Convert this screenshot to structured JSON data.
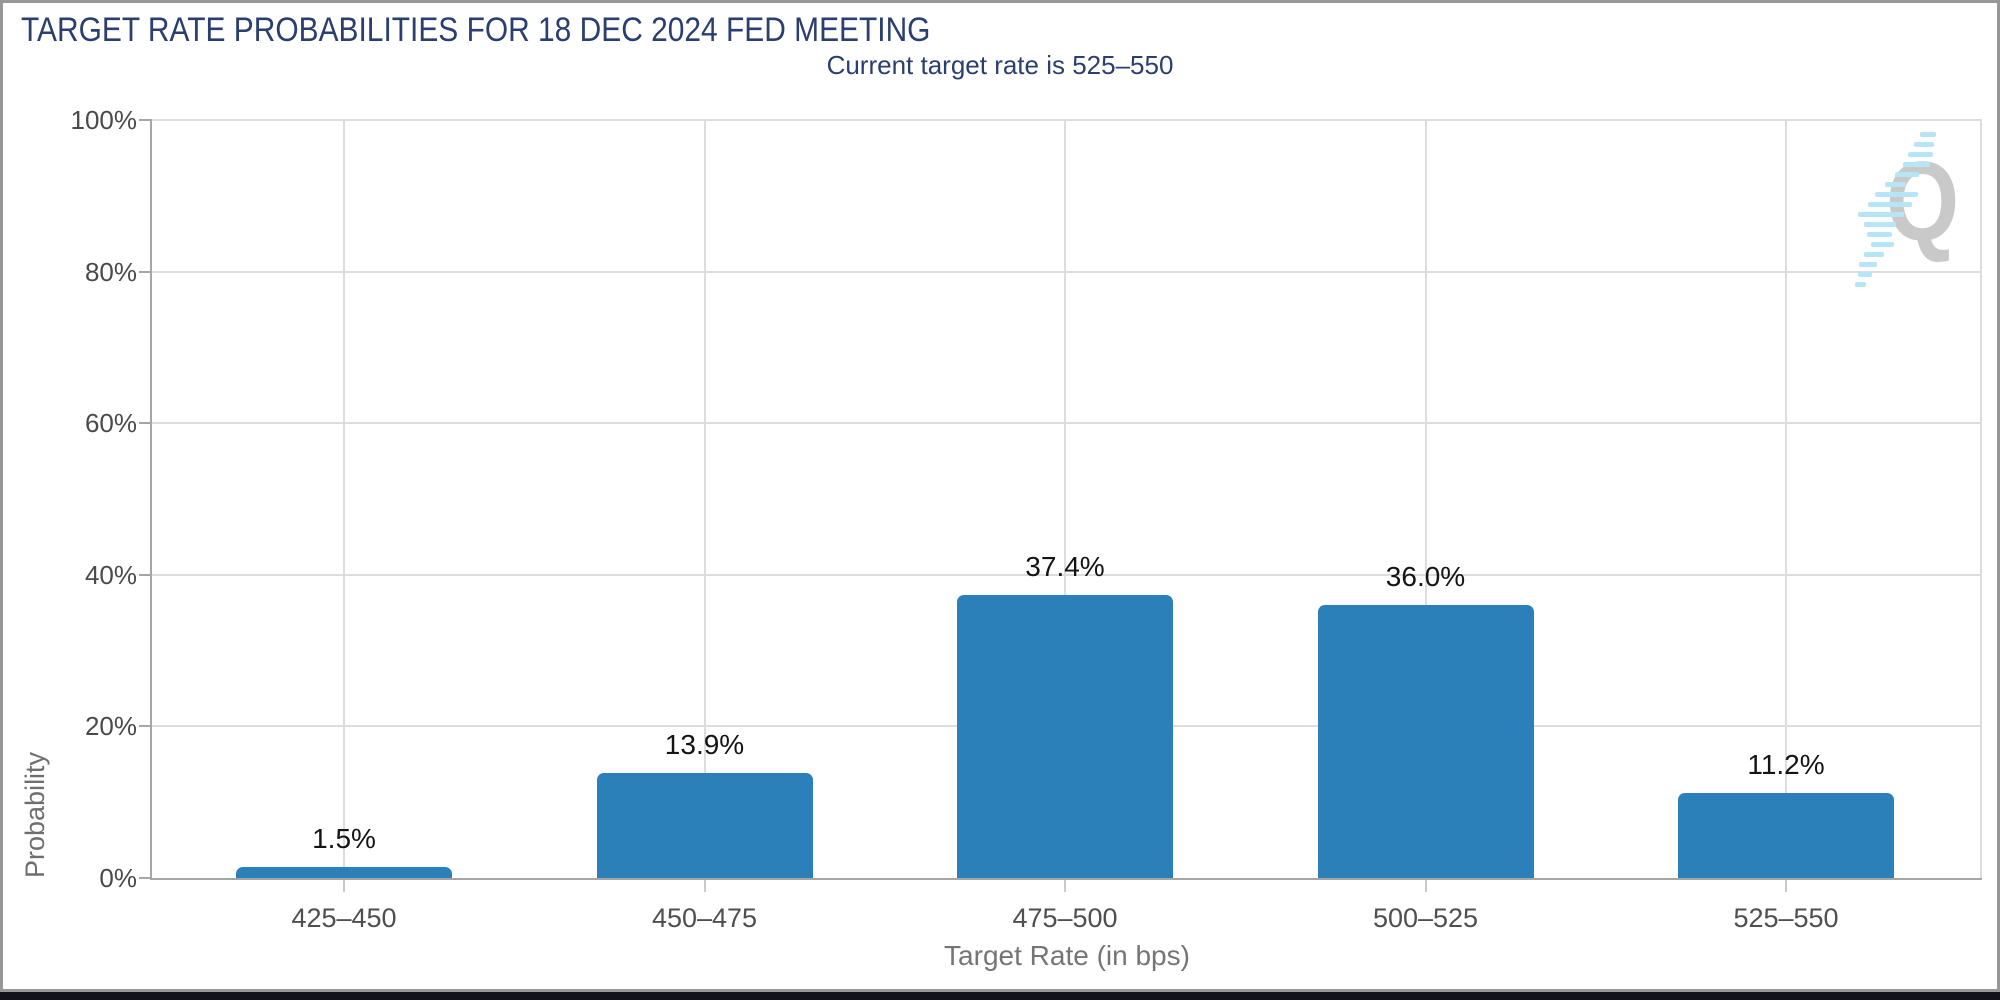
{
  "header": {
    "title": "TARGET RATE PROBABILITIES FOR 18 DEC 2024 FED MEETING",
    "subtitle": "Current target rate is 525–550"
  },
  "chart_data": {
    "type": "bar",
    "title": "TARGET RATE PROBABILITIES FOR 18 DEC 2024 FED MEETING",
    "subtitle": "Current target rate is 525–550",
    "categories": [
      "425–450",
      "450–475",
      "475–500",
      "500–525",
      "525–550"
    ],
    "values": [
      1.5,
      13.9,
      37.4,
      36.0,
      11.2
    ],
    "value_labels": [
      "1.5%",
      "13.9%",
      "37.4%",
      "36.0%",
      "11.2%"
    ],
    "xlabel": "Target Rate (in bps)",
    "ylabel": "Probability",
    "ylim": [
      0,
      100
    ],
    "yticks": [
      0,
      20,
      40,
      60,
      80,
      100
    ],
    "ytick_labels": [
      "0%",
      "20%",
      "40%",
      "60%",
      "80%",
      "100%"
    ],
    "grid": true,
    "legend": "none",
    "bar_color": "#2b80b9"
  },
  "colors": {
    "title_navy": "#2a3f6f",
    "bar_blue": "#2b80b9",
    "gridline": "#dddddd",
    "axis_line": "#a6a6a6",
    "tick_text": "#4a4a4a",
    "axis_title_text": "#6e6e6e",
    "frame_border": "#979797",
    "bottom_strip": "#12121b",
    "logo_gray": "#c9c9c9",
    "logo_blue": "#b7e5f8"
  },
  "watermark": {
    "icon": "q-logo-watermark",
    "letter": "Q"
  }
}
